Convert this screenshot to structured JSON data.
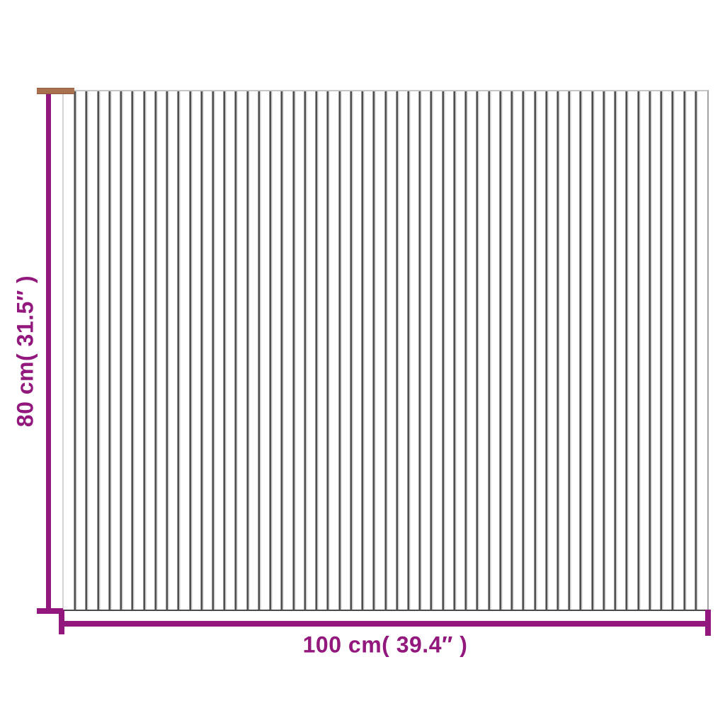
{
  "diagram": {
    "type": "product-dimension-diagram",
    "product": "striped bamboo mat",
    "height_label": "80 cm( 31.5″ )",
    "width_label": "100 cm( 39.4″ )",
    "slat_count": 56
  },
  "colors": {
    "accent": "#93187D",
    "cap_brown": "#A9714E",
    "slat_line": "#4F4F4F",
    "background": "#FFFFFF"
  }
}
